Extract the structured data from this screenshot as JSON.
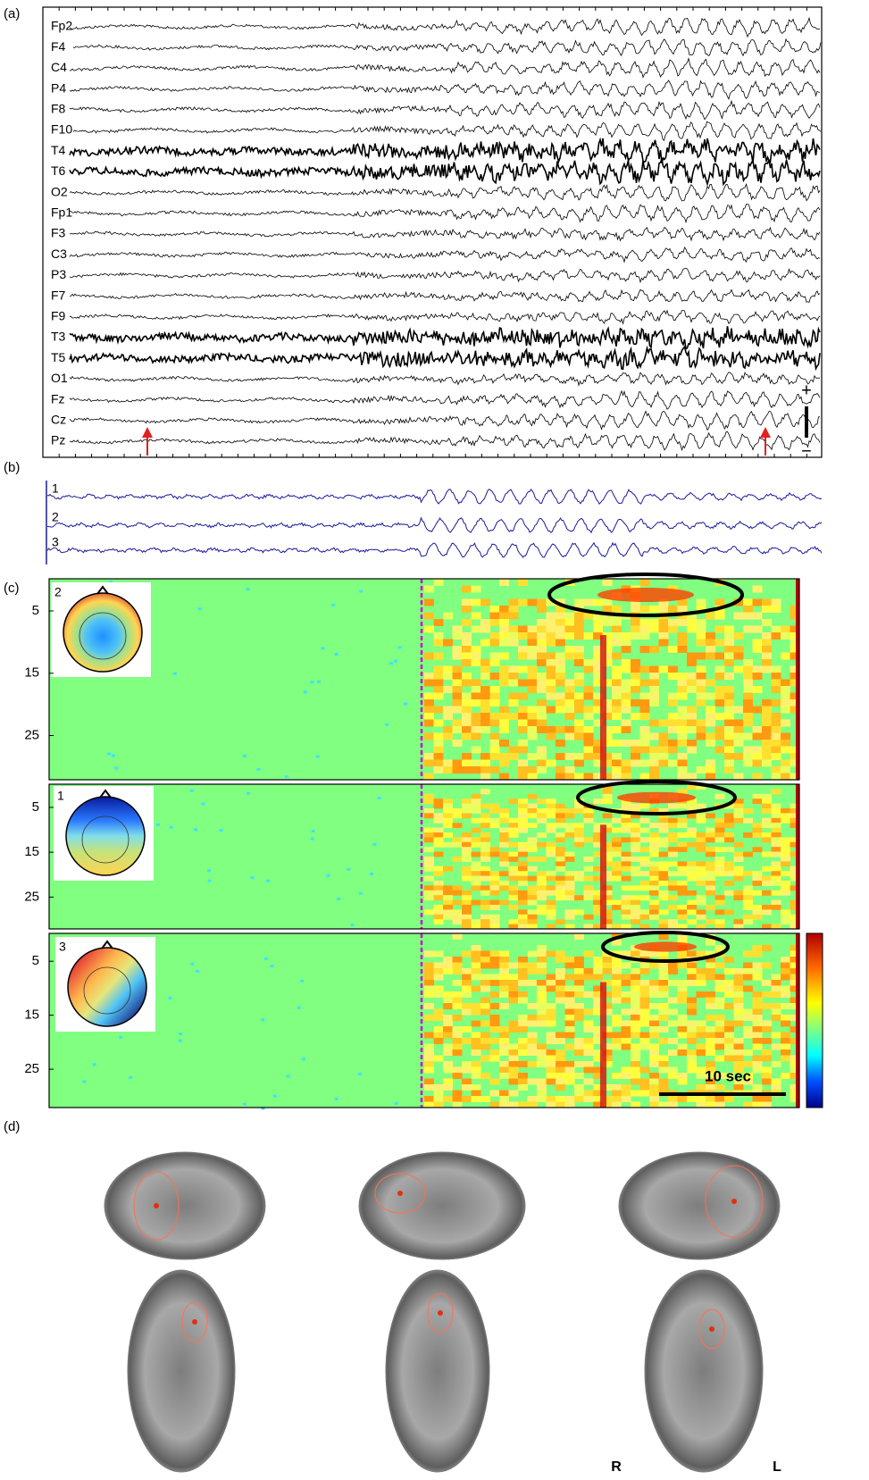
{
  "panels": {
    "a": {
      "label": "(a)",
      "channels": [
        "Fp2",
        "F4",
        "C4",
        "P4",
        "F8",
        "F10",
        "T4",
        "T6",
        "O2",
        "Fp1",
        "F3",
        "C3",
        "P3",
        "F7",
        "F9",
        "T3",
        "T5",
        "O1",
        "Fz",
        "Cz",
        "Pz"
      ],
      "scale_plus": "+",
      "scale_minus": "−"
    },
    "b": {
      "label": "(b)",
      "components": [
        "1",
        "2",
        "3"
      ]
    },
    "c": {
      "label": "(c)",
      "maps": [
        {
          "component": "2",
          "yticks": [
            5,
            15,
            25
          ]
        },
        {
          "component": "1",
          "yticks": [
            5,
            15,
            25
          ]
        },
        {
          "component": "3",
          "yticks": [
            5,
            15,
            25
          ]
        }
      ],
      "scale_bar": "10 sec"
    },
    "d": {
      "label": "(d)",
      "right": "R",
      "left": "L"
    }
  }
}
